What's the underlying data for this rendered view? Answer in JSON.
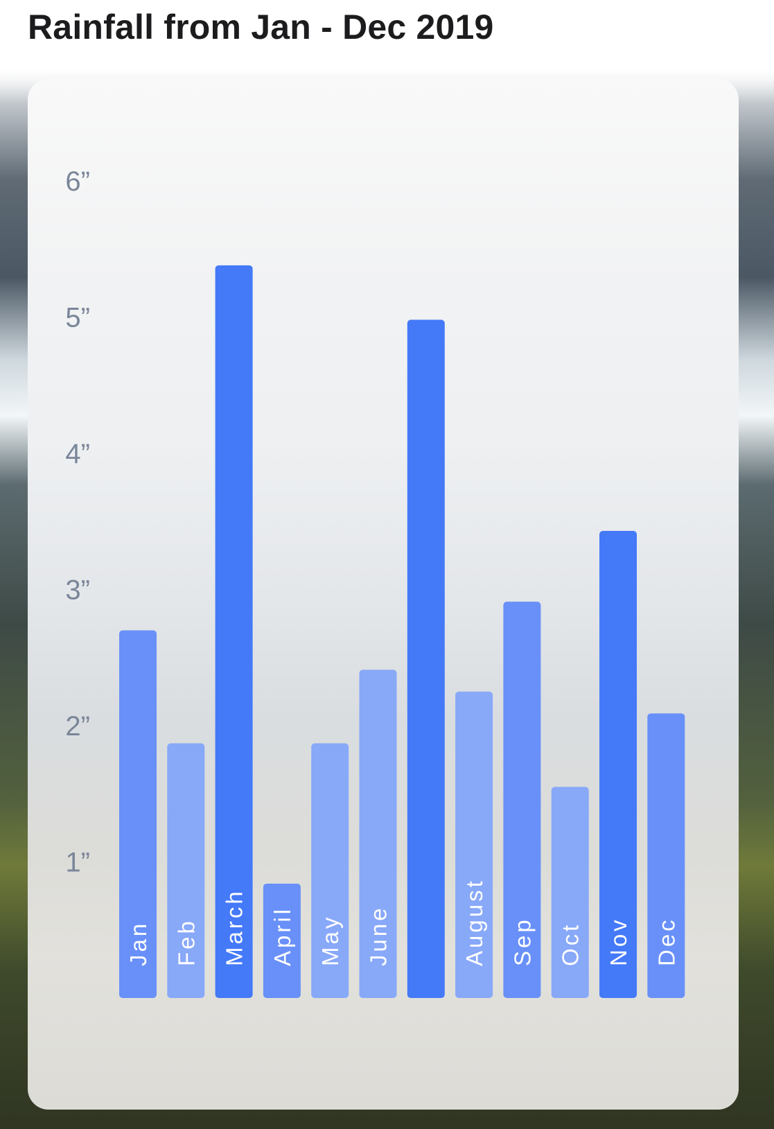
{
  "title": "Rainfall from Jan - Dec 2019",
  "chart_data": {
    "type": "bar",
    "title": "Rainfall from Jan - Dec 2019",
    "xlabel": "",
    "ylabel": "",
    "categories": [
      "Jan",
      "Feb",
      "March",
      "April",
      "May",
      "June",
      "",
      "August",
      "Sep",
      "Oct",
      "Nov",
      "Dec"
    ],
    "values": [
      2.7,
      1.87,
      5.38,
      0.84,
      1.87,
      2.41,
      4.98,
      2.25,
      2.91,
      1.55,
      3.43,
      2.09
    ],
    "y_ticks": [
      "1”",
      "2”",
      "3”",
      "4”",
      "5”",
      "6”"
    ],
    "y_tick_values": [
      1,
      2,
      3,
      4,
      5,
      6
    ],
    "ylim": [
      0,
      6
    ],
    "grid": false,
    "legend": "none",
    "colors": {
      "dark": "#4479f8",
      "medium": "#6890f8",
      "light": "#88a8f8"
    },
    "bar_colors": [
      "#6890f8",
      "#88a8f8",
      "#4479f8",
      "#6890f8",
      "#88a8f8",
      "#88a8f8",
      "#4479f8",
      "#88a8f8",
      "#6890f8",
      "#88a8f8",
      "#4479f8",
      "#6890f8"
    ]
  }
}
